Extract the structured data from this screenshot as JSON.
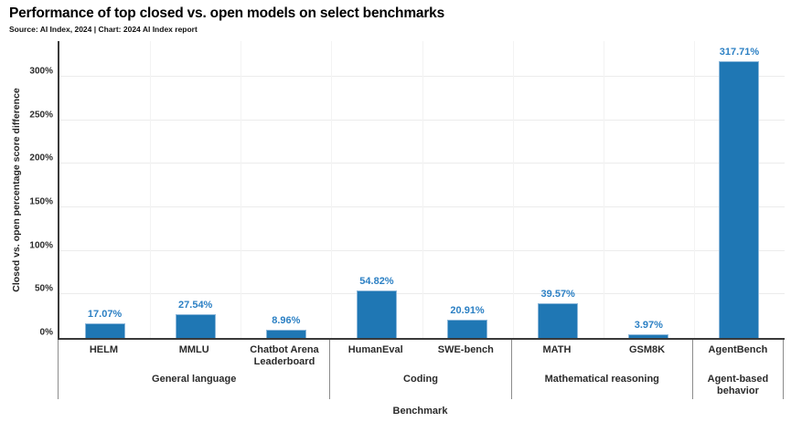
{
  "header": {
    "title": "Performance of top closed vs. open models on select benchmarks",
    "source_line": "Source: AI Index, 2024 | Chart: 2024 AI Index report"
  },
  "colors": {
    "bar_fill": "#1f77b4",
    "bar_border": "#8ab6d9",
    "value_label": "#2c80c4",
    "axis_line": "#3a3a3a",
    "divider_line": "#8c8c8c",
    "grid_line": "#ececec"
  },
  "chart_data": {
    "type": "bar",
    "title": "Performance of top closed vs. open models on select benchmarks",
    "xlabel": "Benchmark",
    "ylabel": "Closed vs. open percentage score difference",
    "ylim": [
      0,
      341
    ],
    "yticks": [
      0,
      50,
      100,
      150,
      200,
      250,
      300
    ],
    "ytick_labels": [
      "0%",
      "50%",
      "100%",
      "150%",
      "200%",
      "250%",
      "300%"
    ],
    "grid": true,
    "legend_position": "none",
    "groups": [
      {
        "label": "General language",
        "bars": [
          {
            "category": "HELM",
            "value": 17.07,
            "value_label": "17.07%"
          },
          {
            "category": "MMLU",
            "value": 27.54,
            "value_label": "27.54%"
          },
          {
            "category": "Chatbot Arena Leaderboard",
            "value": 8.96,
            "value_label": "8.96%"
          }
        ]
      },
      {
        "label": "Coding",
        "bars": [
          {
            "category": "HumanEval",
            "value": 54.82,
            "value_label": "54.82%"
          },
          {
            "category": "SWE-bench",
            "value": 20.91,
            "value_label": "20.91%"
          }
        ]
      },
      {
        "label": "Mathematical reasoning",
        "bars": [
          {
            "category": "MATH",
            "value": 39.57,
            "value_label": "39.57%"
          },
          {
            "category": "GSM8K",
            "value": 3.97,
            "value_label": "3.97%"
          }
        ]
      },
      {
        "label": "Agent-based behavior",
        "bars": [
          {
            "category": "AgentBench",
            "value": 317.71,
            "value_label": "317.71%"
          }
        ]
      }
    ]
  }
}
